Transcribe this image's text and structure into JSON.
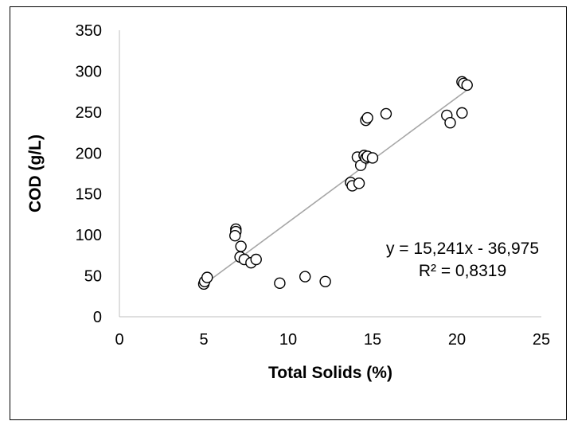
{
  "chart_data": {
    "type": "scatter",
    "title": "",
    "xlabel": "Total Solids (%)",
    "ylabel": "COD (g/L)",
    "xlim": [
      0,
      25
    ],
    "ylim": [
      0,
      350
    ],
    "xticks": [
      "0",
      "5",
      "10",
      "15",
      "20",
      "25"
    ],
    "yticks": [
      "0",
      "50",
      "100",
      "150",
      "200",
      "250",
      "300",
      "350"
    ],
    "grid": false,
    "legend": "none",
    "marker_color": "#ffffff",
    "marker_edge": "#000000",
    "trendline_color": "#a6a6a6",
    "points": [
      {
        "x": 5.0,
        "y": 40
      },
      {
        "x": 5.05,
        "y": 43
      },
      {
        "x": 5.2,
        "y": 48
      },
      {
        "x": 6.9,
        "y": 107
      },
      {
        "x": 6.9,
        "y": 104
      },
      {
        "x": 6.85,
        "y": 99
      },
      {
        "x": 7.2,
        "y": 86
      },
      {
        "x": 7.15,
        "y": 73
      },
      {
        "x": 7.4,
        "y": 70
      },
      {
        "x": 7.8,
        "y": 66
      },
      {
        "x": 8.1,
        "y": 70
      },
      {
        "x": 9.5,
        "y": 41
      },
      {
        "x": 11.0,
        "y": 49
      },
      {
        "x": 12.2,
        "y": 43
      },
      {
        "x": 13.7,
        "y": 164
      },
      {
        "x": 13.8,
        "y": 160
      },
      {
        "x": 14.2,
        "y": 163
      },
      {
        "x": 14.1,
        "y": 195
      },
      {
        "x": 14.3,
        "y": 185
      },
      {
        "x": 14.5,
        "y": 197
      },
      {
        "x": 14.6,
        "y": 194
      },
      {
        "x": 14.7,
        "y": 196
      },
      {
        "x": 15.0,
        "y": 194
      },
      {
        "x": 14.6,
        "y": 240
      },
      {
        "x": 14.7,
        "y": 243
      },
      {
        "x": 15.8,
        "y": 248
      },
      {
        "x": 19.4,
        "y": 246
      },
      {
        "x": 19.6,
        "y": 237
      },
      {
        "x": 20.3,
        "y": 249
      },
      {
        "x": 20.3,
        "y": 287
      },
      {
        "x": 20.4,
        "y": 285
      },
      {
        "x": 20.6,
        "y": 283
      }
    ],
    "trendline": {
      "x_range": [
        5.0,
        20.6
      ],
      "equation": "y = 15,241x - 36,975",
      "r_squared": "R² = 0,8319"
    }
  }
}
